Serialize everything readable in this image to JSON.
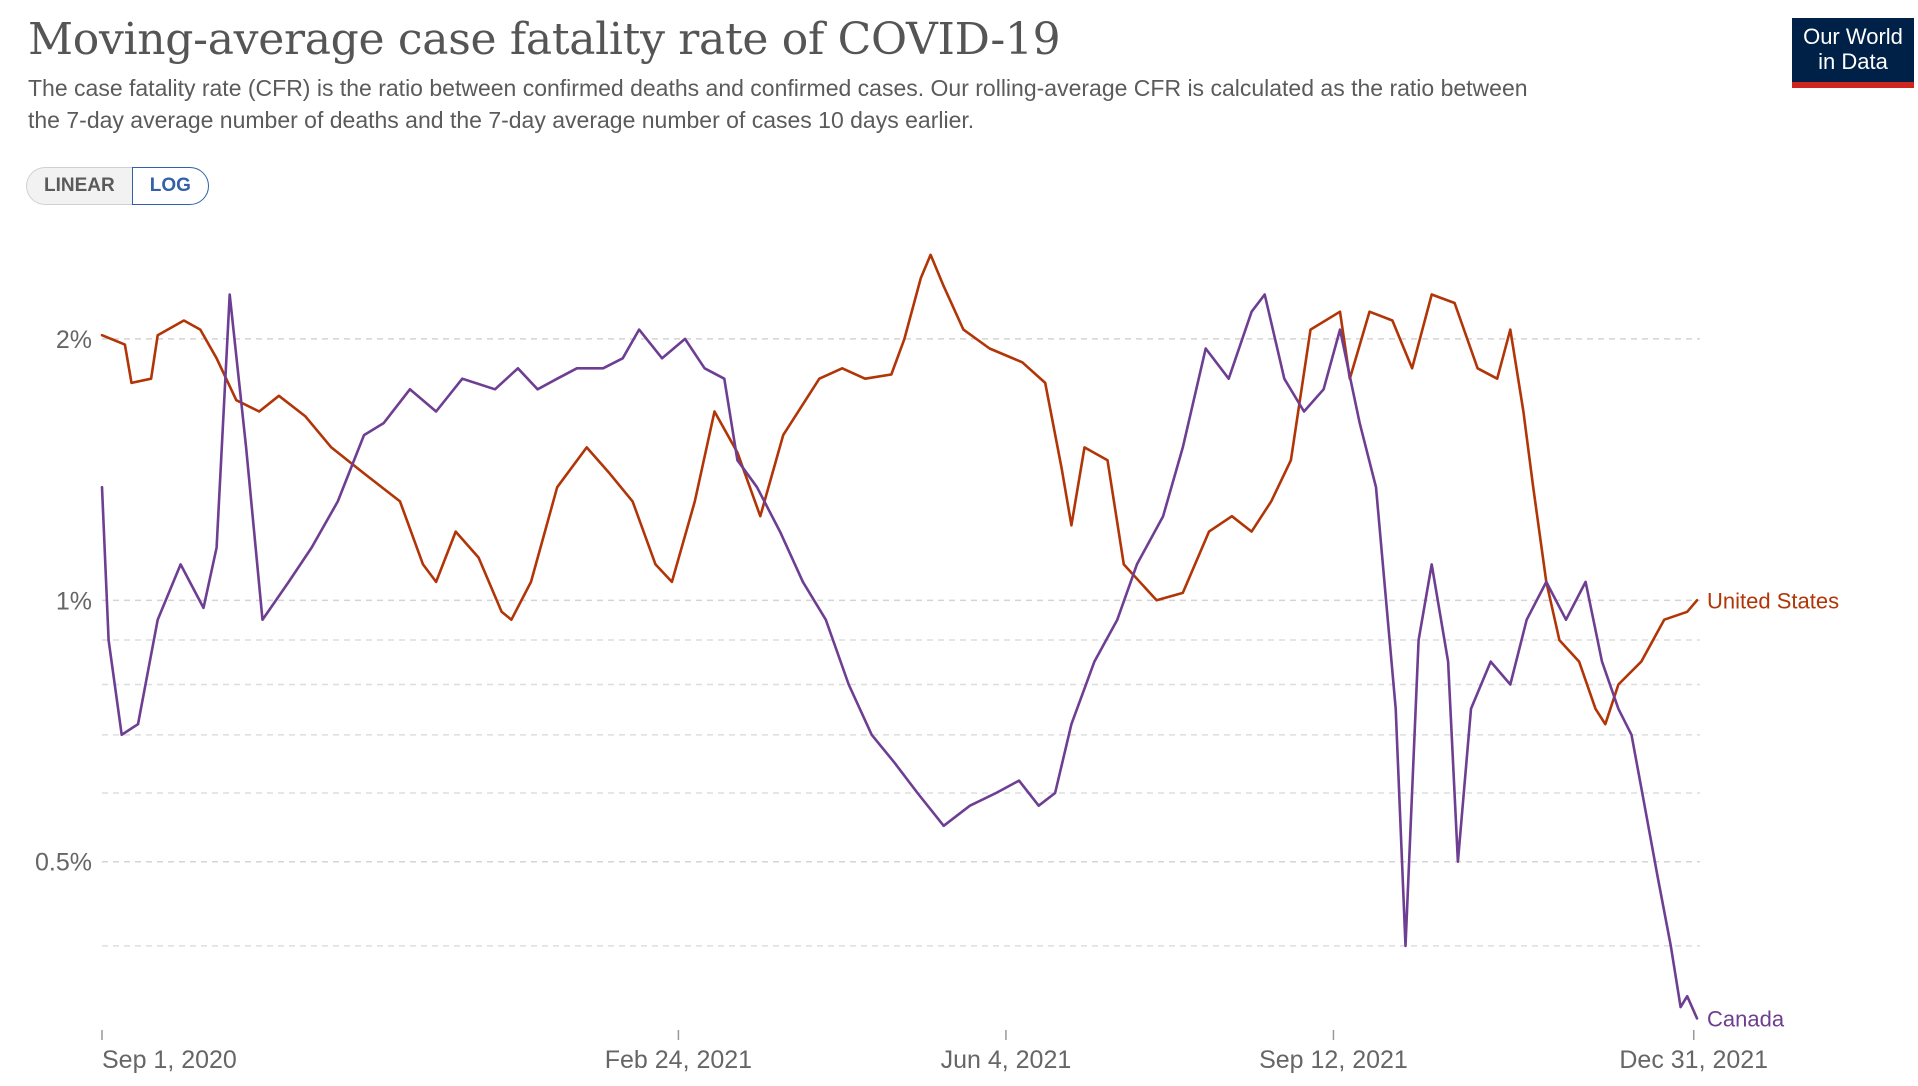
{
  "header": {
    "title": "Moving-average case fatality rate of COVID-19",
    "subtitle_line1": "The case fatality rate (CFR) is the ratio between confirmed deaths and confirmed cases. Our rolling-average CFR is calculated as the ratio between",
    "subtitle_line2": "the 7-day average number of deaths and the 7-day average number of cases 10 days earlier."
  },
  "logo": {
    "line1": "Our World",
    "line2": "in Data",
    "background": "#002147",
    "accent": "#ce261e"
  },
  "scale_toggle": {
    "options": [
      "LINEAR",
      "LOG"
    ],
    "selected": "LOG"
  },
  "chart_data": {
    "type": "line",
    "title": "Moving-average case fatality rate of COVID-19",
    "xlabel": "",
    "ylabel": "",
    "y_scale": "log",
    "y_unit": "%",
    "ylim": [
      0.32,
      2.6
    ],
    "xlim": [
      "2020-09-01",
      "2022-01-01"
    ],
    "x_ticks": [
      {
        "date": "2020-09-01",
        "label": "Sep 1, 2020"
      },
      {
        "date": "2021-02-24",
        "label": "Feb 24, 2021"
      },
      {
        "date": "2021-06-04",
        "label": "Jun 4, 2021"
      },
      {
        "date": "2021-09-12",
        "label": "Sep 12, 2021"
      },
      {
        "date": "2021-12-31",
        "label": "Dec 31, 2021"
      }
    ],
    "y_ticks": [
      {
        "value": 0.5,
        "label": "0.5%"
      },
      {
        "value": 1,
        "label": "1%"
      },
      {
        "value": 2,
        "label": "2%"
      }
    ],
    "minor_gridlines": [
      0.4,
      0.6,
      0.7,
      0.8,
      0.9
    ],
    "grid": true,
    "legend": "line-end labels",
    "series": [
      {
        "name": "United States",
        "color": "#b13507",
        "points": [
          [
            "2020-09-01",
            2.02
          ],
          [
            "2020-09-08",
            1.97
          ],
          [
            "2020-09-10",
            1.78
          ],
          [
            "2020-09-16",
            1.8
          ],
          [
            "2020-09-18",
            2.02
          ],
          [
            "2020-09-26",
            2.1
          ],
          [
            "2020-10-01",
            2.05
          ],
          [
            "2020-10-06",
            1.9
          ],
          [
            "2020-10-12",
            1.7
          ],
          [
            "2020-10-19",
            1.65
          ],
          [
            "2020-10-25",
            1.72
          ],
          [
            "2020-11-02",
            1.63
          ],
          [
            "2020-11-10",
            1.5
          ],
          [
            "2020-11-20",
            1.4
          ],
          [
            "2020-12-01",
            1.3
          ],
          [
            "2020-12-08",
            1.1
          ],
          [
            "2020-12-12",
            1.05
          ],
          [
            "2020-12-18",
            1.2
          ],
          [
            "2020-12-25",
            1.12
          ],
          [
            "2021-01-01",
            0.97
          ],
          [
            "2021-01-04",
            0.95
          ],
          [
            "2021-01-10",
            1.05
          ],
          [
            "2021-01-18",
            1.35
          ],
          [
            "2021-01-27",
            1.5
          ],
          [
            "2021-02-03",
            1.4
          ],
          [
            "2021-02-10",
            1.3
          ],
          [
            "2021-02-17",
            1.1
          ],
          [
            "2021-02-22",
            1.05
          ],
          [
            "2021-03-01",
            1.3
          ],
          [
            "2021-03-07",
            1.65
          ],
          [
            "2021-03-14",
            1.48
          ],
          [
            "2021-03-21",
            1.25
          ],
          [
            "2021-03-28",
            1.55
          ],
          [
            "2021-04-08",
            1.8
          ],
          [
            "2021-04-15",
            1.85
          ],
          [
            "2021-04-22",
            1.8
          ],
          [
            "2021-04-30",
            1.82
          ],
          [
            "2021-05-04",
            2.0
          ],
          [
            "2021-05-09",
            2.35
          ],
          [
            "2021-05-12",
            2.5
          ],
          [
            "2021-05-16",
            2.3
          ],
          [
            "2021-05-22",
            2.05
          ],
          [
            "2021-05-30",
            1.95
          ],
          [
            "2021-06-09",
            1.88
          ],
          [
            "2021-06-16",
            1.78
          ],
          [
            "2021-06-21",
            1.42
          ],
          [
            "2021-06-24",
            1.22
          ],
          [
            "2021-06-28",
            1.5
          ],
          [
            "2021-07-05",
            1.45
          ],
          [
            "2021-07-10",
            1.1
          ],
          [
            "2021-07-20",
            1.0
          ],
          [
            "2021-07-28",
            1.02
          ],
          [
            "2021-08-05",
            1.2
          ],
          [
            "2021-08-12",
            1.25
          ],
          [
            "2021-08-18",
            1.2
          ],
          [
            "2021-08-24",
            1.3
          ],
          [
            "2021-08-30",
            1.45
          ],
          [
            "2021-09-05",
            2.05
          ],
          [
            "2021-09-14",
            2.15
          ],
          [
            "2021-09-17",
            1.8
          ],
          [
            "2021-09-23",
            2.15
          ],
          [
            "2021-09-30",
            2.1
          ],
          [
            "2021-10-06",
            1.85
          ],
          [
            "2021-10-12",
            2.25
          ],
          [
            "2021-10-19",
            2.2
          ],
          [
            "2021-10-26",
            1.85
          ],
          [
            "2021-11-01",
            1.8
          ],
          [
            "2021-11-05",
            2.05
          ],
          [
            "2021-11-09",
            1.65
          ],
          [
            "2021-11-12",
            1.35
          ],
          [
            "2021-11-16",
            1.05
          ],
          [
            "2021-11-20",
            0.9
          ],
          [
            "2021-11-26",
            0.85
          ],
          [
            "2021-12-01",
            0.75
          ],
          [
            "2021-12-04",
            0.72
          ],
          [
            "2021-12-08",
            0.8
          ],
          [
            "2021-12-15",
            0.85
          ],
          [
            "2021-12-22",
            0.95
          ],
          [
            "2021-12-29",
            0.97
          ],
          [
            "2022-01-01",
            1.0
          ]
        ]
      },
      {
        "name": "Canada",
        "color": "#6d3e91",
        "points": [
          [
            "2020-09-01",
            1.35
          ],
          [
            "2020-09-03",
            0.9
          ],
          [
            "2020-09-07",
            0.7
          ],
          [
            "2020-09-12",
            0.72
          ],
          [
            "2020-09-18",
            0.95
          ],
          [
            "2020-09-25",
            1.1
          ],
          [
            "2020-10-02",
            0.98
          ],
          [
            "2020-10-06",
            1.15
          ],
          [
            "2020-10-10",
            2.25
          ],
          [
            "2020-10-15",
            1.5
          ],
          [
            "2020-10-20",
            0.95
          ],
          [
            "2020-10-28",
            1.05
          ],
          [
            "2020-11-04",
            1.15
          ],
          [
            "2020-11-12",
            1.3
          ],
          [
            "2020-11-20",
            1.55
          ],
          [
            "2020-11-26",
            1.6
          ],
          [
            "2020-12-04",
            1.75
          ],
          [
            "2020-12-12",
            1.65
          ],
          [
            "2020-12-20",
            1.8
          ],
          [
            "2020-12-30",
            1.75
          ],
          [
            "2021-01-06",
            1.85
          ],
          [
            "2021-01-12",
            1.75
          ],
          [
            "2021-01-18",
            1.8
          ],
          [
            "2021-01-24",
            1.85
          ],
          [
            "2021-02-01",
            1.85
          ],
          [
            "2021-02-07",
            1.9
          ],
          [
            "2021-02-12",
            2.05
          ],
          [
            "2021-02-19",
            1.9
          ],
          [
            "2021-02-26",
            2.0
          ],
          [
            "2021-03-04",
            1.85
          ],
          [
            "2021-03-10",
            1.8
          ],
          [
            "2021-03-14",
            1.45
          ],
          [
            "2021-03-20",
            1.35
          ],
          [
            "2021-03-27",
            1.2
          ],
          [
            "2021-04-03",
            1.05
          ],
          [
            "2021-04-10",
            0.95
          ],
          [
            "2021-04-17",
            0.8
          ],
          [
            "2021-04-24",
            0.7
          ],
          [
            "2021-05-01",
            0.65
          ],
          [
            "2021-05-08",
            0.6
          ],
          [
            "2021-05-16",
            0.55
          ],
          [
            "2021-05-24",
            0.58
          ],
          [
            "2021-06-01",
            0.6
          ],
          [
            "2021-06-08",
            0.62
          ],
          [
            "2021-06-14",
            0.58
          ],
          [
            "2021-06-19",
            0.6
          ],
          [
            "2021-06-24",
            0.72
          ],
          [
            "2021-07-01",
            0.85
          ],
          [
            "2021-07-08",
            0.95
          ],
          [
            "2021-07-14",
            1.1
          ],
          [
            "2021-07-22",
            1.25
          ],
          [
            "2021-07-28",
            1.5
          ],
          [
            "2021-08-04",
            1.95
          ],
          [
            "2021-08-11",
            1.8
          ],
          [
            "2021-08-18",
            2.15
          ],
          [
            "2021-08-22",
            2.25
          ],
          [
            "2021-08-28",
            1.8
          ],
          [
            "2021-09-03",
            1.65
          ],
          [
            "2021-09-09",
            1.75
          ],
          [
            "2021-09-14",
            2.05
          ],
          [
            "2021-09-20",
            1.6
          ],
          [
            "2021-09-25",
            1.35
          ],
          [
            "2021-10-01",
            0.75
          ],
          [
            "2021-10-04",
            0.4
          ],
          [
            "2021-10-08",
            0.9
          ],
          [
            "2021-10-12",
            1.1
          ],
          [
            "2021-10-17",
            0.85
          ],
          [
            "2021-10-20",
            0.5
          ],
          [
            "2021-10-24",
            0.75
          ],
          [
            "2021-10-30",
            0.85
          ],
          [
            "2021-11-05",
            0.8
          ],
          [
            "2021-11-10",
            0.95
          ],
          [
            "2021-11-16",
            1.05
          ],
          [
            "2021-11-22",
            0.95
          ],
          [
            "2021-11-28",
            1.05
          ],
          [
            "2021-12-03",
            0.85
          ],
          [
            "2021-12-08",
            0.75
          ],
          [
            "2021-12-12",
            0.7
          ],
          [
            "2021-12-16",
            0.58
          ],
          [
            "2021-12-20",
            0.48
          ],
          [
            "2021-12-24",
            0.4
          ],
          [
            "2021-12-27",
            0.34
          ],
          [
            "2021-12-29",
            0.35
          ],
          [
            "2022-01-01",
            0.33
          ]
        ]
      }
    ]
  }
}
